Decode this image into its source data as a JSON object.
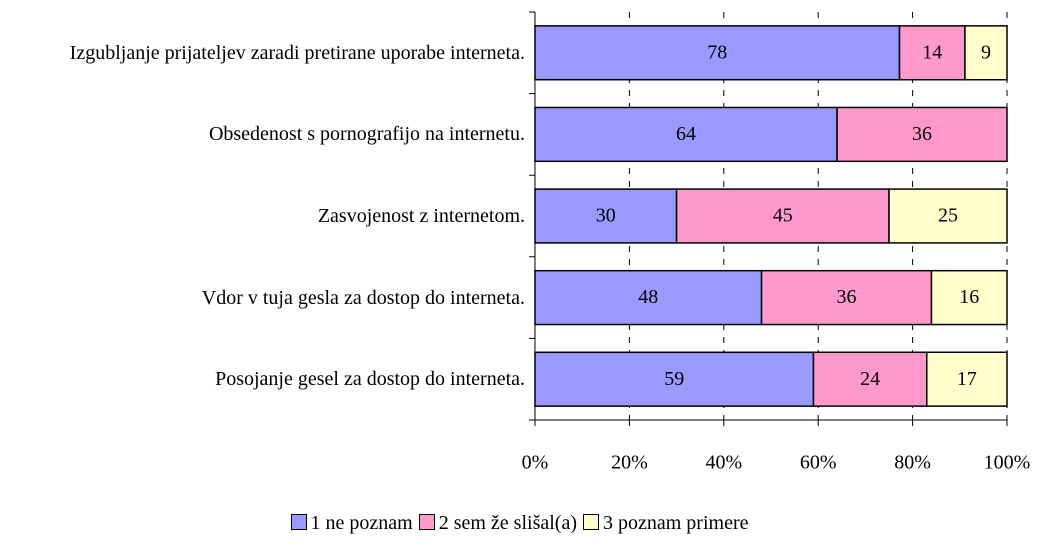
{
  "chart_data": {
    "type": "bar",
    "orientation": "horizontal",
    "stacking": "percent",
    "categories": [
      "Izgubljanje prijateljev zaradi pretirane uporabe interneta.",
      "Obsedenost s pornografijo na internetu.",
      "Zasvojenost z internetom.",
      "Vdor v tuja gesla za dostop do interneta.",
      "Posojanje gesel za dostop do interneta."
    ],
    "series": [
      {
        "name": "1  ne poznam",
        "color": "#9999ff",
        "values": [
          78,
          64,
          30,
          48,
          59
        ]
      },
      {
        "name": "2  sem že slišal(a)",
        "color": "#ff99cc",
        "values": [
          14,
          36,
          45,
          36,
          24
        ]
      },
      {
        "name": "3  poznam primere",
        "color": "#ffffcc",
        "values": [
          9,
          null,
          25,
          16,
          17
        ]
      }
    ],
    "xlim": [
      0,
      100
    ],
    "xticks": [
      {
        "value": 0,
        "label": "0%"
      },
      {
        "value": 20,
        "label": "20%"
      },
      {
        "value": 40,
        "label": "40%"
      },
      {
        "value": 60,
        "label": "60%"
      },
      {
        "value": 80,
        "label": "80%"
      },
      {
        "value": 100,
        "label": "100%"
      }
    ],
    "grid": true,
    "legend": "bottom"
  }
}
